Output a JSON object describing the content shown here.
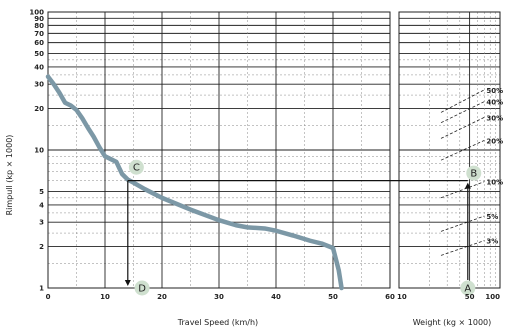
{
  "chart_data": {
    "type": "line",
    "title": "",
    "ylabel": "Rimpull (kp × 1000)",
    "ylim": [
      1,
      100
    ],
    "yscale": "log",
    "yticks": [
      "1",
      "2",
      "3",
      "4",
      "5",
      "10",
      "20",
      "30",
      "40",
      "50",
      "60",
      "70",
      "80",
      "90",
      "100"
    ],
    "yticks_values": [
      1,
      2,
      3,
      4,
      5,
      10,
      20,
      30,
      40,
      50,
      60,
      70,
      80,
      90,
      100
    ],
    "ygrid_values": [
      1,
      1.5,
      2,
      2.5,
      3,
      3.5,
      4,
      4.5,
      5,
      6,
      7,
      8,
      9,
      10,
      15,
      20,
      25,
      30,
      35,
      40,
      45,
      50,
      60,
      70,
      80,
      90,
      100
    ],
    "grid": true,
    "left_panel": {
      "xlabel": "Travel Speed (km/h)",
      "xlim": [
        0,
        60
      ],
      "xticks": [
        "0",
        "10",
        "20",
        "30",
        "40",
        "50",
        "60"
      ],
      "xticks_values": [
        0,
        10,
        20,
        30,
        40,
        50,
        60
      ],
      "xgrid_values": [
        0,
        5,
        10,
        15,
        20,
        25,
        30,
        35,
        40,
        45,
        50,
        55,
        60
      ],
      "series": [
        {
          "x": [
            0,
            1,
            2,
            3,
            4,
            5,
            6,
            7,
            8,
            9,
            10,
            11,
            12,
            12.5,
            13,
            14,
            15,
            17,
            20,
            25,
            30,
            33,
            35,
            38,
            40,
            43,
            46,
            48,
            50,
            51,
            51.5
          ],
          "y": [
            34,
            30,
            26,
            22,
            21,
            19.5,
            17,
            14.5,
            12.5,
            10.5,
            9,
            8.6,
            8.2,
            7.4,
            6.7,
            6.1,
            5.8,
            5.2,
            4.5,
            3.7,
            3.1,
            2.85,
            2.75,
            2.7,
            2.6,
            2.4,
            2.2,
            2.1,
            1.95,
            1.35,
            1.0
          ]
        }
      ],
      "color": "#7c98a6"
    },
    "right_panel": {
      "xlabel": "Weight (kg × 1000)",
      "xscale": "log",
      "xlim": [
        10,
        100
      ],
      "xticks": [
        "10",
        "50",
        "100"
      ],
      "xticks_values": [
        10,
        50,
        100
      ],
      "xgrid_values": [
        10,
        20,
        30,
        40,
        50,
        60,
        70,
        80,
        90,
        100
      ],
      "grade_lines": [
        {
          "label": "3%",
          "y_at_50": 2.0,
          "y_top": 2.45
        },
        {
          "label": "5%",
          "y_at_50": 3.0,
          "y_top": 3.7
        },
        {
          "label": "10%",
          "y_at_50": 5.3,
          "y_top": 6.6
        },
        {
          "label": "20%",
          "y_at_50": 10.3,
          "y_top": 13.5
        },
        {
          "label": "30%",
          "y_at_50": 15.0,
          "y_top": 20.0
        },
        {
          "label": "40%",
          "y_at_50": 19.5,
          "y_top": 26.0
        },
        {
          "label": "50%",
          "y_at_50": 23.5,
          "y_top": 32.0
        }
      ]
    },
    "annotations": {
      "points": [
        {
          "label": "A",
          "panel": "right",
          "x": 48,
          "y": 1
        },
        {
          "label": "B",
          "panel": "right",
          "x": 55,
          "y": 6.8
        },
        {
          "label": "C",
          "panel": "left",
          "x": 15.5,
          "y": 7.5
        },
        {
          "label": "D",
          "panel": "left",
          "x": 16.5,
          "y": 1
        }
      ],
      "reference_line_y": 6.0,
      "reference_line_x": 14,
      "weight_line_x": 48
    }
  }
}
